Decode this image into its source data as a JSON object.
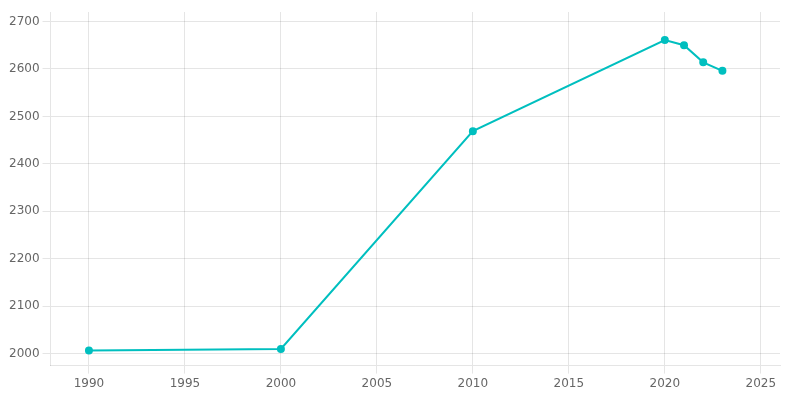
{
  "chart_data": {
    "type": "line",
    "x": [
      1990,
      2000,
      2010,
      2020,
      2021,
      2022,
      2023
    ],
    "values": [
      2007,
      2010,
      2469,
      2661,
      2650,
      2614,
      2596
    ],
    "color": "#00BFBF",
    "marker": "circle",
    "xlim": [
      1988,
      2026
    ],
    "ylim": [
      1975,
      2720
    ],
    "xticks": [
      1990,
      1995,
      2000,
      2005,
      2010,
      2015,
      2020,
      2025
    ],
    "yticks": [
      2000,
      2100,
      2200,
      2300,
      2400,
      2500,
      2600,
      2700
    ],
    "grid": true
  }
}
